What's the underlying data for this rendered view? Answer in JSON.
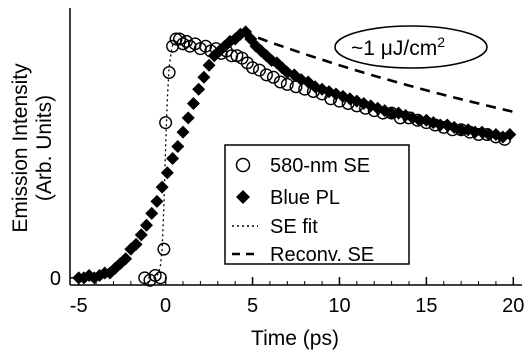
{
  "chart_data": {
    "type": "scatter",
    "xlabel": "Time (ps)",
    "ylabel": "Emission Intensity",
    "ylabel_sub": "(Arb. Units)",
    "xlim": [
      -5.5,
      20.5
    ],
    "ylim": [
      -0.03,
      1.13
    ],
    "x_ticks": [
      -5,
      0,
      5,
      10,
      15,
      20
    ],
    "x_tick_labels": [
      "-5",
      "0",
      "5",
      "10",
      "15",
      "20"
    ],
    "y_ticks": [
      0
    ],
    "y_tick_labels": [
      "0"
    ],
    "annotation": {
      "prefix": "~1 ",
      "unit": "μJ/cm",
      "sup": "2"
    },
    "legend_position": "bottom-right",
    "series": [
      {
        "name": "580-nm SE",
        "style": "open-circle",
        "x": [
          -1.2,
          -0.9,
          -0.6,
          -0.3,
          -0.1,
          0.0,
          0.2,
          0.4,
          0.6,
          0.8,
          1.0,
          1.2,
          1.4,
          1.7,
          2.0,
          2.3,
          2.6,
          2.9,
          3.2,
          3.5,
          3.8,
          4.1,
          4.4,
          4.7,
          5.0,
          5.4,
          5.8,
          6.2,
          6.6,
          7.0,
          7.5,
          8.0,
          8.5,
          9.0,
          9.5,
          10.0,
          10.5,
          11.0,
          11.5,
          12.0,
          12.5,
          13.0,
          13.5,
          14.0,
          14.5,
          15.0,
          15.5,
          16.0,
          16.5,
          17.0,
          17.5,
          18.0,
          18.5,
          19.0,
          19.5
        ],
        "y": [
          0.0,
          -0.01,
          0.01,
          0.0,
          0.12,
          0.65,
          0.86,
          0.97,
          1.0,
          1.0,
          0.98,
          0.99,
          0.97,
          0.98,
          0.96,
          0.97,
          0.95,
          0.96,
          0.94,
          0.95,
          0.93,
          0.93,
          0.92,
          0.9,
          0.88,
          0.87,
          0.85,
          0.84,
          0.82,
          0.81,
          0.8,
          0.79,
          0.78,
          0.77,
          0.75,
          0.74,
          0.73,
          0.72,
          0.71,
          0.7,
          0.69,
          0.69,
          0.67,
          0.67,
          0.66,
          0.65,
          0.64,
          0.63,
          0.62,
          0.62,
          0.61,
          0.6,
          0.6,
          0.59,
          0.58
        ]
      },
      {
        "name": "Blue PL",
        "style": "filled-diamond",
        "x": [
          -5.0,
          -4.7,
          -4.4,
          -4.1,
          -3.8,
          -3.5,
          -3.2,
          -2.9,
          -2.6,
          -2.3,
          -2.0,
          -1.7,
          -1.4,
          -1.1,
          -0.8,
          -0.5,
          -0.2,
          0.1,
          0.4,
          0.7,
          1.0,
          1.3,
          1.6,
          1.9,
          2.2,
          2.5,
          2.8,
          3.1,
          3.4,
          3.7,
          4.0,
          4.3,
          4.6,
          4.9,
          5.2,
          5.5,
          5.8,
          6.1,
          6.4,
          6.7,
          7.0,
          7.4,
          7.8,
          8.2,
          8.6,
          9.0,
          9.4,
          9.8,
          10.2,
          10.6,
          11.0,
          11.4,
          11.8,
          12.2,
          12.6,
          13.0,
          13.4,
          13.8,
          14.2,
          14.6,
          15.0,
          15.4,
          15.8,
          16.2,
          16.6,
          17.0,
          17.4,
          17.8,
          18.2,
          18.6,
          19.0,
          19.4,
          19.8
        ],
        "y": [
          0.0,
          0.0,
          0.01,
          0.0,
          0.01,
          0.02,
          0.02,
          0.04,
          0.06,
          0.08,
          0.12,
          0.14,
          0.18,
          0.22,
          0.27,
          0.32,
          0.38,
          0.44,
          0.5,
          0.55,
          0.61,
          0.67,
          0.73,
          0.79,
          0.84,
          0.89,
          0.93,
          0.95,
          0.97,
          0.99,
          1.0,
          1.02,
          1.03,
          1.0,
          0.97,
          0.95,
          0.93,
          0.91,
          0.9,
          0.88,
          0.86,
          0.85,
          0.83,
          0.82,
          0.8,
          0.79,
          0.78,
          0.77,
          0.76,
          0.75,
          0.74,
          0.73,
          0.72,
          0.71,
          0.7,
          0.69,
          0.69,
          0.68,
          0.67,
          0.66,
          0.66,
          0.65,
          0.64,
          0.64,
          0.63,
          0.62,
          0.62,
          0.61,
          0.61,
          0.6,
          0.6,
          0.59,
          0.6
        ]
      },
      {
        "name": "SE fit",
        "style": "dotted-line",
        "x": [
          -1.0,
          -0.6,
          -0.4,
          -0.3,
          -0.2,
          -0.1,
          0.0,
          0.1,
          0.2,
          0.35,
          0.5
        ],
        "y": [
          0.0,
          0.0,
          0.02,
          0.05,
          0.12,
          0.3,
          0.55,
          0.75,
          0.88,
          0.96,
          1.0
        ]
      },
      {
        "name": "Reconv. SE",
        "style": "dashed-line",
        "x": [
          4.4,
          6,
          8,
          10,
          12,
          14,
          16,
          18,
          20
        ],
        "y": [
          1.03,
          0.987,
          0.937,
          0.89,
          0.846,
          0.805,
          0.766,
          0.73,
          0.695
        ]
      }
    ]
  }
}
